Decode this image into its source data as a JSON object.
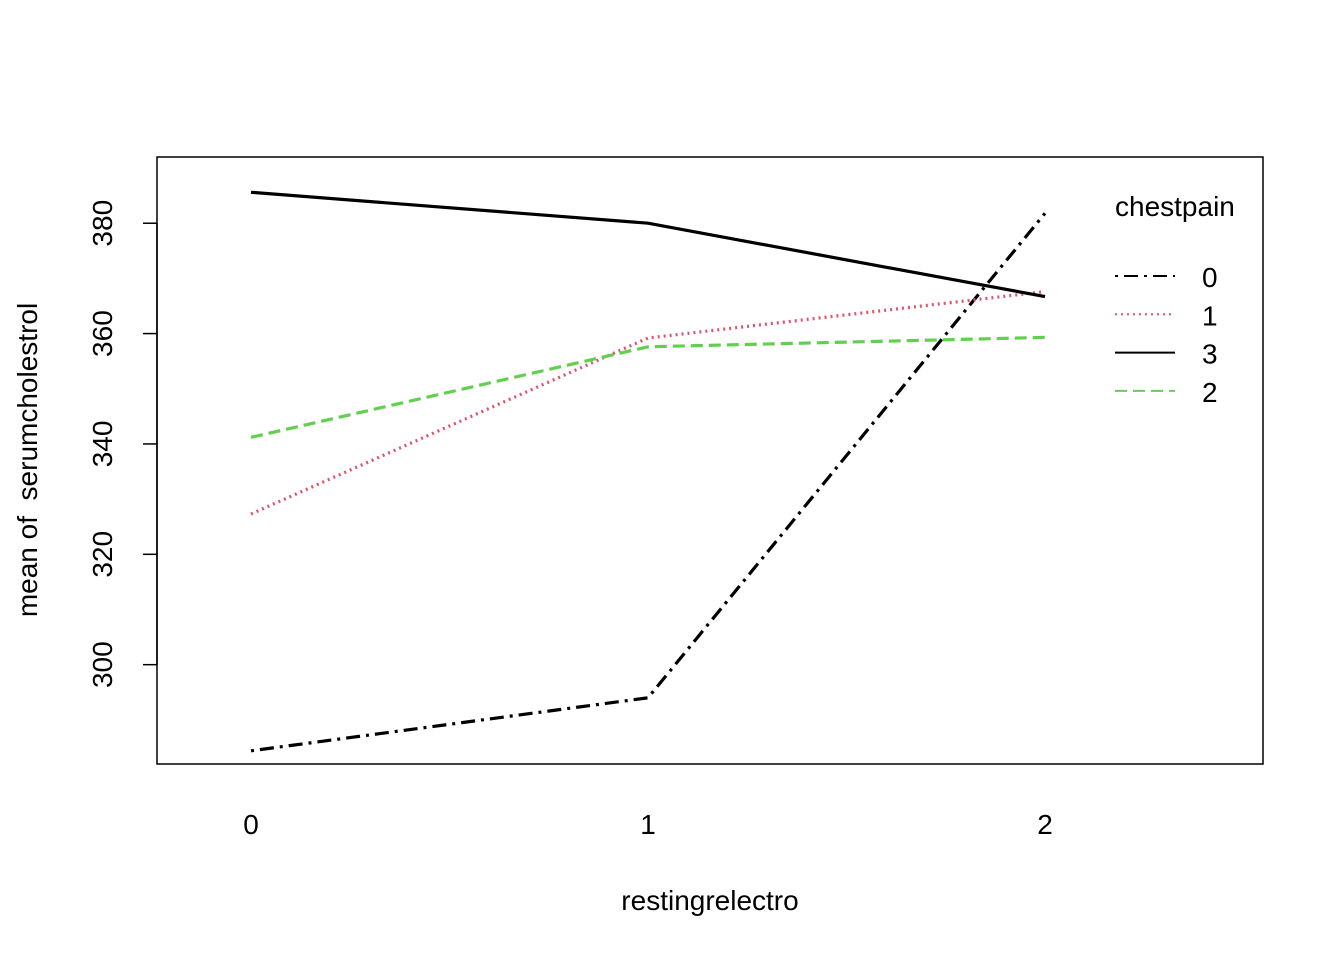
{
  "chart_data": {
    "type": "line",
    "title": "",
    "xlabel": "restingrelectro",
    "ylabel": "mean of  serumcholestrol",
    "categories": [
      "0",
      "1",
      "2"
    ],
    "yticks": [
      300,
      320,
      340,
      360,
      380
    ],
    "ylim": [
      282,
      392
    ],
    "legend": {
      "title": "chestpain",
      "position": "top-right"
    },
    "series": [
      {
        "name": "0",
        "values": [
          284.4,
          294.0,
          381.8
        ],
        "color": "#000000",
        "dash": "dotdash"
      },
      {
        "name": "1",
        "values": [
          327.3,
          359.2,
          367.6
        ],
        "color": "#DF536B",
        "dash": "dotted"
      },
      {
        "name": "3",
        "values": [
          385.6,
          380.0,
          366.7
        ],
        "color": "#000000",
        "dash": "solid"
      },
      {
        "name": "2",
        "values": [
          341.2,
          357.6,
          359.3
        ],
        "color": "#61D04F",
        "dash": "dashed"
      }
    ]
  }
}
